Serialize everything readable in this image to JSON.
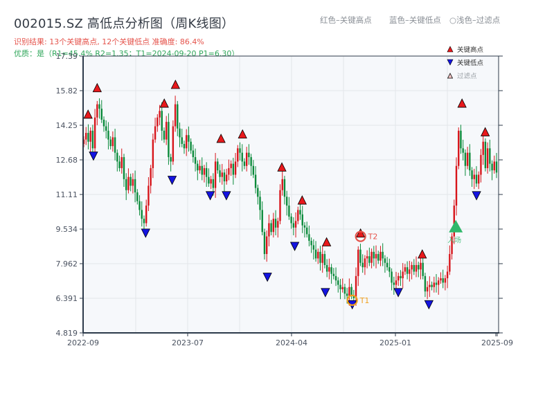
{
  "header": {
    "title": "002015.SZ 高低点分析图（周K线图）",
    "result_line": "识别结果: 13个关键高点, 12个关键低点  准确度: 86.4%",
    "quality_line": "优质：是（R1=45.4%  R2=1.35；T1=2024-09-20 P1=6.30）"
  },
  "top_legend": {
    "red": "红色–关键高点",
    "blue": "蓝色–关键低点",
    "light": "○浅色–过滤点"
  },
  "legend": {
    "items": [
      {
        "label": "关键高点",
        "symbol": "triangle-up",
        "color": "#e8191c"
      },
      {
        "label": "关键低点",
        "symbol": "triangle-down",
        "color": "#1414e0"
      },
      {
        "label": "过滤点",
        "symbol": "triangle-up-outline",
        "color": "#f3c6c6"
      }
    ]
  },
  "colors": {
    "up": "#d7141a",
    "down": "#0a8a3a",
    "key_high": "#e8191c",
    "key_low": "#1414e0",
    "t1": "#f0a020",
    "t2": "#e5534b",
    "entry": "#2fb86a",
    "plot_bg": "#f6f8fb",
    "grid": "#e3e6ea",
    "axis": "#2c3a4a"
  },
  "chart_data": {
    "type": "candlestick",
    "title": "002015.SZ 高低点分析图（周K线图）",
    "xlabel": "",
    "ylabel": "",
    "ylim": [
      4.819,
      17.39
    ],
    "yticks": [
      "17.39",
      "15.82",
      "14.25",
      "12.68",
      "11.11",
      "9.534",
      "7.962",
      "6.391",
      "4.819"
    ],
    "xticks": [
      "2022-09",
      "2023-07",
      "2024-04",
      "2025-01",
      "2025-09"
    ],
    "grid": true,
    "key_highs": [
      {
        "x": 0.012,
        "y": 14.5
      },
      {
        "x": 0.034,
        "y": 15.7
      },
      {
        "x": 0.196,
        "y": 15.0
      },
      {
        "x": 0.223,
        "y": 15.85
      },
      {
        "x": 0.333,
        "y": 13.4
      },
      {
        "x": 0.385,
        "y": 13.6
      },
      {
        "x": 0.48,
        "y": 12.1
      },
      {
        "x": 0.529,
        "y": 10.6
      },
      {
        "x": 0.588,
        "y": 8.7
      },
      {
        "x": 0.67,
        "y": 9.1
      },
      {
        "x": 0.819,
        "y": 8.15
      },
      {
        "x": 0.915,
        "y": 15.0
      },
      {
        "x": 0.971,
        "y": 13.7
      }
    ],
    "key_lows": [
      {
        "x": 0.025,
        "y": 13.1
      },
      {
        "x": 0.151,
        "y": 9.6
      },
      {
        "x": 0.215,
        "y": 12.0
      },
      {
        "x": 0.307,
        "y": 11.3
      },
      {
        "x": 0.346,
        "y": 11.3
      },
      {
        "x": 0.445,
        "y": 7.6
      },
      {
        "x": 0.511,
        "y": 9.0
      },
      {
        "x": 0.585,
        "y": 6.9
      },
      {
        "x": 0.65,
        "y": 6.35
      },
      {
        "x": 0.761,
        "y": 6.9
      },
      {
        "x": 0.835,
        "y": 6.35
      },
      {
        "x": 0.95,
        "y": 11.3
      }
    ],
    "annotations": [
      {
        "label": "T1",
        "x": 0.65,
        "y": 6.3,
        "color": "#f0a020"
      },
      {
        "label": "T2",
        "x": 0.67,
        "y": 9.2,
        "color": "#e5534b"
      },
      {
        "label": "入场",
        "x": 0.9,
        "y": 9.7,
        "color": "#2fb86a"
      }
    ],
    "close_series": [
      13.6,
      13.9,
      13.5,
      14.0,
      13.2,
      14.6,
      15.2,
      15.0,
      14.5,
      14.2,
      14.0,
      13.6,
      13.3,
      13.7,
      13.0,
      12.6,
      12.3,
      12.8,
      11.8,
      11.3,
      11.9,
      11.5,
      11.8,
      11.2,
      10.8,
      10.4,
      10.0,
      9.8,
      10.6,
      11.5,
      12.3,
      13.6,
      14.2,
      14.6,
      14.9,
      14.0,
      13.6,
      14.4,
      12.8,
      12.6,
      14.2,
      15.2,
      14.1,
      13.7,
      13.4,
      13.2,
      13.8,
      13.5,
      13.1,
      12.8,
      12.5,
      12.2,
      12.4,
      12.0,
      12.3,
      11.9,
      11.6,
      11.8,
      11.4,
      12.6,
      12.2,
      11.9,
      12.1,
      11.7,
      12.0,
      12.3,
      12.5,
      12.0,
      12.6,
      13.2,
      13.0,
      12.6,
      12.4,
      13.0,
      12.8,
      12.4,
      12.0,
      11.4,
      11.0,
      10.4,
      9.4,
      8.4,
      9.2,
      9.8,
      9.4,
      10.0,
      9.6,
      9.9,
      11.3,
      11.8,
      11.0,
      10.6,
      10.1,
      9.8,
      9.6,
      9.9,
      10.4,
      10.2,
      9.7,
      9.6,
      9.3,
      9.0,
      8.8,
      8.6,
      8.2,
      8.5,
      8.0,
      8.4,
      7.9,
      7.6,
      7.8,
      7.5,
      7.4,
      7.2,
      7.0,
      6.8,
      6.9,
      6.6,
      6.5,
      6.9,
      6.5,
      6.4,
      7.4,
      8.6,
      8.0,
      7.8,
      8.2,
      8.3,
      8.0,
      8.5,
      8.2,
      8.4,
      8.1,
      8.5,
      8.2,
      8.0,
      7.8,
      7.6,
      7.1,
      7.0,
      7.2,
      7.4,
      7.3,
      7.6,
      7.8,
      7.5,
      7.7,
      7.9,
      7.6,
      7.9,
      7.7,
      8.0,
      7.4,
      6.7,
      6.9,
      7.0,
      6.9,
      7.1,
      7.0,
      7.2,
      7.3,
      7.1,
      7.3,
      7.6,
      8.4,
      9.2,
      10.6,
      12.4,
      14.0,
      13.2,
      13.0,
      12.4,
      13.0,
      12.2,
      11.8,
      12.0,
      11.6,
      12.0,
      12.9,
      13.5,
      12.3,
      13.2,
      12.5,
      12.2,
      12.6,
      12.1
    ]
  }
}
